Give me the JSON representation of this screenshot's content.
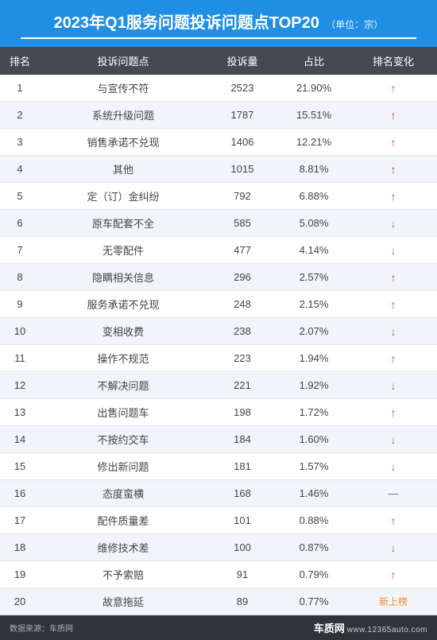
{
  "title": {
    "main": "2023年Q1服务问题投诉问题点TOP20",
    "unit": "（单位：宗）"
  },
  "columns": {
    "rank": "排名",
    "issue": "投诉问题点",
    "count": "投诉量",
    "pct": "占比",
    "change": "排名变化"
  },
  "theme": {
    "header_bg": "#1f8fe6",
    "col_header_bg": "#434a54",
    "row_even_bg": "#f1f4f8",
    "row_odd_bg": "#ffffff",
    "up_color": "#e63c2e",
    "down_color": "#2fb85a",
    "new_color": "#f08c2e",
    "footer_bg": "#2f343b"
  },
  "rows": [
    {
      "rank": 1,
      "issue": "与宣传不符",
      "count": 2523,
      "pct": "21.90%",
      "change": "up"
    },
    {
      "rank": 2,
      "issue": "系统升级问题",
      "count": 1787,
      "pct": "15.51%",
      "change": "up"
    },
    {
      "rank": 3,
      "issue": "销售承诺不兑现",
      "count": 1406,
      "pct": "12.21%",
      "change": "up"
    },
    {
      "rank": 4,
      "issue": "其他",
      "count": 1015,
      "pct": "8.81%",
      "change": "up"
    },
    {
      "rank": 5,
      "issue": "定（订）金纠纷",
      "count": 792,
      "pct": "6.88%",
      "change": "up"
    },
    {
      "rank": 6,
      "issue": "原车配套不全",
      "count": 585,
      "pct": "5.08%",
      "change": "down"
    },
    {
      "rank": 7,
      "issue": "无零配件",
      "count": 477,
      "pct": "4.14%",
      "change": "down"
    },
    {
      "rank": 8,
      "issue": "隐瞒相关信息",
      "count": 296,
      "pct": "2.57%",
      "change": "up"
    },
    {
      "rank": 9,
      "issue": "服务承诺不兑现",
      "count": 248,
      "pct": "2.15%",
      "change": "up"
    },
    {
      "rank": 10,
      "issue": "变相收费",
      "count": 238,
      "pct": "2.07%",
      "change": "down"
    },
    {
      "rank": 11,
      "issue": "操作不规范",
      "count": 223,
      "pct": "1.94%",
      "change": "up"
    },
    {
      "rank": 12,
      "issue": "不解决问题",
      "count": 221,
      "pct": "1.92%",
      "change": "down"
    },
    {
      "rank": 13,
      "issue": "出售问题车",
      "count": 198,
      "pct": "1.72%",
      "change": "up"
    },
    {
      "rank": 14,
      "issue": "不按约交车",
      "count": 184,
      "pct": "1.60%",
      "change": "down"
    },
    {
      "rank": 15,
      "issue": "修出新问题",
      "count": 181,
      "pct": "1.57%",
      "change": "down"
    },
    {
      "rank": 16,
      "issue": "态度蛮横",
      "count": 168,
      "pct": "1.46%",
      "change": "flat"
    },
    {
      "rank": 17,
      "issue": "配件质量差",
      "count": 101,
      "pct": "0.88%",
      "change": "up"
    },
    {
      "rank": 18,
      "issue": "维修技术差",
      "count": 100,
      "pct": "0.87%",
      "change": "down"
    },
    {
      "rank": 19,
      "issue": "不予索赔",
      "count": 91,
      "pct": "0.79%",
      "change": "up"
    },
    {
      "rank": 20,
      "issue": "故意拖延",
      "count": 89,
      "pct": "0.77%",
      "change": "new"
    }
  ],
  "change_labels": {
    "new": "新上榜"
  },
  "footer": {
    "source": "数据来源：车质网",
    "brand": "车质网",
    "domain": "www.12365auto.com"
  }
}
